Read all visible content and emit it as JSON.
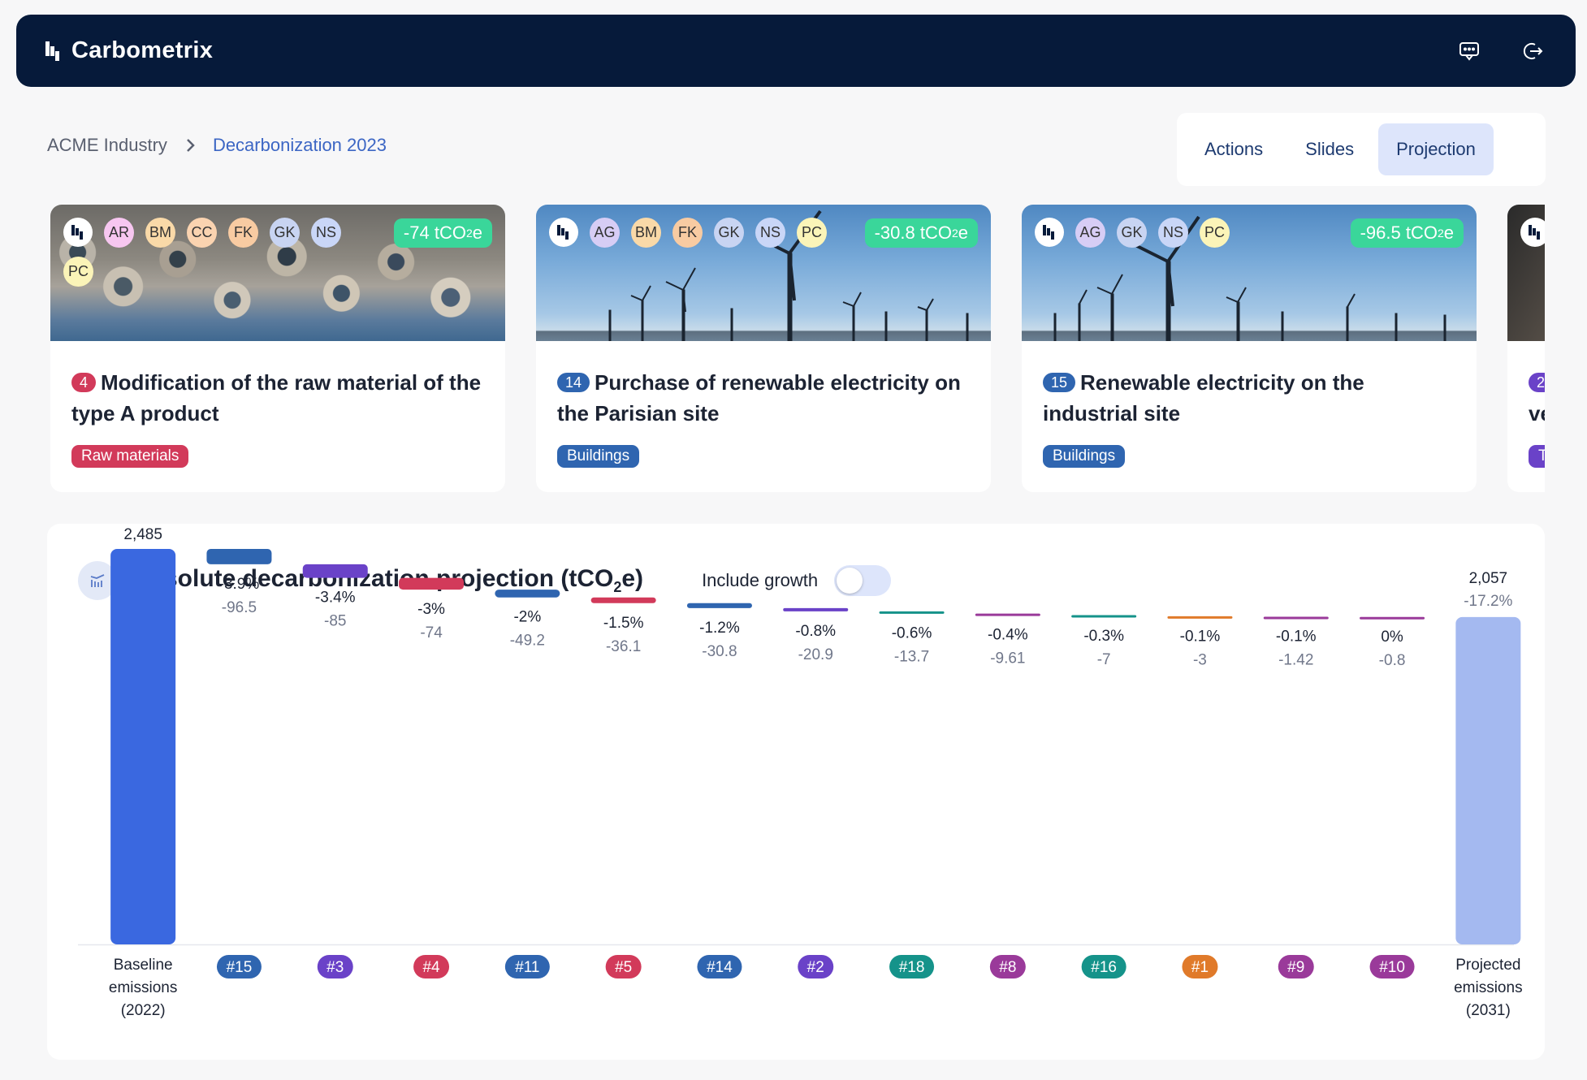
{
  "app": {
    "name": "Carbometrix"
  },
  "topbar": {
    "icons": [
      "feedback-icon",
      "logout-icon"
    ]
  },
  "breadcrumb": {
    "root": "ACME Industry",
    "current": "Decarbonization 2023"
  },
  "tabs": [
    {
      "label": "Actions",
      "active": false
    },
    {
      "label": "Slides",
      "active": false
    },
    {
      "label": "Projection",
      "active": true
    }
  ],
  "cards": [
    {
      "number": "4",
      "number_color": "#d23a5a",
      "title": "Modification of the raw material of the type A product",
      "tag": "Raw materials",
      "tag_color": "#d23a5a",
      "co2": "-74 tCO",
      "co2_sub": "2",
      "co2_unit": "e",
      "image": "pipes",
      "avatars": [
        {
          "initials": "AR",
          "color": "#f7c6f0"
        },
        {
          "initials": "BM",
          "color": "#f9d9a8"
        },
        {
          "initials": "CC",
          "color": "#fad3b0"
        },
        {
          "initials": "FK",
          "color": "#f8cba2"
        },
        {
          "initials": "GK",
          "color": "#c8d4f2"
        },
        {
          "initials": "NS",
          "color": "#c9d6f7"
        },
        {
          "initials": "PC",
          "color": "#fbf4b8"
        }
      ]
    },
    {
      "number": "14",
      "number_color": "#2f65b0",
      "title": "Purchase of renewable electricity on the Parisian site",
      "tag": "Buildings",
      "tag_color": "#2f65b0",
      "co2": "-30.8 tCO",
      "co2_sub": "2",
      "co2_unit": "e",
      "image": "wind",
      "avatars": [
        {
          "initials": "AG",
          "color": "#d7cdf5"
        },
        {
          "initials": "BM",
          "color": "#f9d9a8"
        },
        {
          "initials": "FK",
          "color": "#f8cba2"
        },
        {
          "initials": "GK",
          "color": "#c8d4f2"
        },
        {
          "initials": "NS",
          "color": "#c9d6f7"
        },
        {
          "initials": "PC",
          "color": "#fbf4b8"
        }
      ]
    },
    {
      "number": "15",
      "number_color": "#2f65b0",
      "title": "Renewable electricity on the industrial site",
      "tag": "Buildings",
      "tag_color": "#2f65b0",
      "co2": "-96.5 tCO",
      "co2_sub": "2",
      "co2_unit": "e",
      "image": "wind",
      "avatars": [
        {
          "initials": "AG",
          "color": "#d7cdf5"
        },
        {
          "initials": "GK",
          "color": "#c8d4f2"
        },
        {
          "initials": "NS",
          "color": "#c9d6f7"
        },
        {
          "initials": "PC",
          "color": "#fbf4b8"
        }
      ]
    },
    {
      "number": "2",
      "number_color": "#6a42c8",
      "title": "ve",
      "tag": "T",
      "tag_color": "#6a42c8",
      "co2": "",
      "co2_sub": "",
      "co2_unit": "",
      "image": "dark",
      "avatars": []
    }
  ],
  "panel": {
    "title": "Absolute decarbonization projection (tCO",
    "title_sub": "2",
    "title_end": "e)",
    "toggle_label": "Include growth",
    "toggle_on": false
  },
  "chart_data": {
    "type": "bar",
    "subtype": "waterfall",
    "baseline": {
      "label_lines": [
        "Baseline",
        "emissions",
        "(2022)"
      ],
      "value": 2485,
      "value_label": "2,485",
      "color": "#3a68e0"
    },
    "projected": {
      "label_lines": [
        "Projected",
        "emissions",
        "(2031)"
      ],
      "value": 2057,
      "value_label": "2,057",
      "pct_label": "-17.2%",
      "color": "#a4b9f0"
    },
    "steps": [
      {
        "id": "#15",
        "pct": "-3.9%",
        "value": -96.5,
        "value_label": "-96.5",
        "color": "#2f65b0"
      },
      {
        "id": "#3",
        "pct": "-3.4%",
        "value": -85,
        "value_label": "-85",
        "color": "#6a42c8"
      },
      {
        "id": "#4",
        "pct": "-3%",
        "value": -74,
        "value_label": "-74",
        "color": "#d23a5a"
      },
      {
        "id": "#11",
        "pct": "-2%",
        "value": -49.2,
        "value_label": "-49.2",
        "color": "#2f65b0"
      },
      {
        "id": "#5",
        "pct": "-1.5%",
        "value": -36.1,
        "value_label": "-36.1",
        "color": "#d23a5a"
      },
      {
        "id": "#14",
        "pct": "-1.2%",
        "value": -30.8,
        "value_label": "-30.8",
        "color": "#2f65b0"
      },
      {
        "id": "#2",
        "pct": "-0.8%",
        "value": -20.9,
        "value_label": "-20.9",
        "color": "#6a42c8"
      },
      {
        "id": "#18",
        "pct": "-0.6%",
        "value": -13.7,
        "value_label": "-13.7",
        "color": "#15938a"
      },
      {
        "id": "#8",
        "pct": "-0.4%",
        "value": -9.61,
        "value_label": "-9.61",
        "color": "#9a3a9a"
      },
      {
        "id": "#16",
        "pct": "-0.3%",
        "value": -7,
        "value_label": "-7",
        "color": "#15938a"
      },
      {
        "id": "#1",
        "pct": "-0.1%",
        "value": -3,
        "value_label": "-3",
        "color": "#e07a2a"
      },
      {
        "id": "#9",
        "pct": "-0.1%",
        "value": -1.42,
        "value_label": "-1.42",
        "color": "#9a3a9a"
      },
      {
        "id": "#10",
        "pct": "0%",
        "value": -0.8,
        "value_label": "-0.8",
        "color": "#9a3a9a"
      }
    ]
  }
}
